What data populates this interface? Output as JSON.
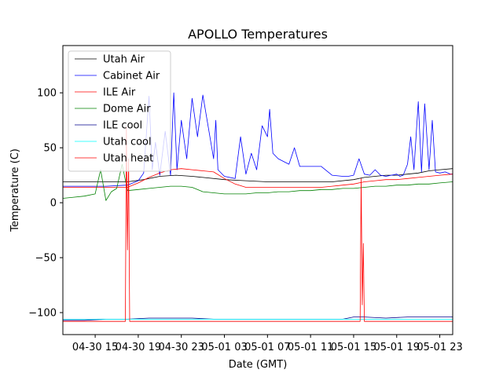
{
  "chart_data": {
    "type": "line",
    "title": "APOLLO Temperatures",
    "xlabel": "Date (GMT)",
    "ylabel": "Temperature (C)",
    "xlim": [
      12.0,
      48.2
    ],
    "ylim": [
      -120,
      143
    ],
    "x_unit": "hours since 04-30 00:00 GMT",
    "x_ticks": [
      {
        "value": 15,
        "label": "04-30 15"
      },
      {
        "value": 19,
        "label": "04-30 19"
      },
      {
        "value": 23,
        "label": "04-30 23"
      },
      {
        "value": 27,
        "label": "05-01 03"
      },
      {
        "value": 31,
        "label": "05-01 07"
      },
      {
        "value": 35,
        "label": "05-01 11"
      },
      {
        "value": 39,
        "label": "05-01 15"
      },
      {
        "value": 43,
        "label": "05-01 19"
      },
      {
        "value": 47,
        "label": "05-01 23"
      }
    ],
    "y_ticks": [
      {
        "value": -100,
        "label": "−100"
      },
      {
        "value": -50,
        "label": "−50"
      },
      {
        "value": 0,
        "label": "0"
      },
      {
        "value": 50,
        "label": "50"
      },
      {
        "value": 100,
        "label": "100"
      }
    ],
    "legend_position": "top-left",
    "series": [
      {
        "name": "Utah Air",
        "color": "#000000",
        "x": [
          12,
          14,
          16,
          18,
          19.5,
          21,
          22.5,
          24,
          25,
          27,
          29,
          31,
          33,
          35,
          37,
          39,
          40,
          41,
          42,
          43,
          44,
          45,
          46,
          47,
          48.2
        ],
        "y": [
          19,
          19,
          19,
          19,
          21,
          24,
          25,
          24,
          23,
          21,
          20,
          19,
          19,
          19,
          19,
          21,
          23,
          24,
          25,
          25,
          26,
          27,
          29,
          30,
          31
        ]
      },
      {
        "name": "Cabinet Air",
        "color": "#0000ff",
        "x": [
          12,
          14,
          16,
          18,
          19,
          19.5,
          20,
          20.3,
          20.6,
          21,
          21.5,
          22,
          22.3,
          22.6,
          23,
          23.5,
          24,
          24.5,
          25,
          26,
          26.2,
          26.4,
          27,
          28,
          28.5,
          29,
          29.5,
          30,
          30.5,
          31,
          31.2,
          31.5,
          32,
          33,
          33.5,
          34,
          35,
          36,
          37,
          38,
          38.5,
          39,
          39.5,
          40,
          40.5,
          41,
          41.5,
          42,
          42.5,
          43,
          43.3,
          43.6,
          44,
          44.3,
          44.6,
          45,
          45.3,
          45.6,
          46,
          46.3,
          46.6,
          47,
          47.5,
          48,
          48.2
        ],
        "y": [
          15,
          15,
          15,
          16,
          20,
          27,
          97,
          30,
          55,
          25,
          65,
          25,
          100,
          30,
          75,
          40,
          95,
          60,
          98,
          40,
          75,
          30,
          24,
          22,
          60,
          26,
          45,
          30,
          70,
          60,
          85,
          45,
          40,
          35,
          50,
          33,
          33,
          33,
          25,
          24,
          24,
          25,
          40,
          26,
          25,
          30,
          25,
          24,
          25,
          26,
          24,
          25,
          35,
          60,
          30,
          92,
          28,
          90,
          30,
          75,
          28,
          27,
          28,
          26,
          26
        ]
      },
      {
        "name": "ILE Air",
        "color": "#ff0000",
        "x": [
          12,
          14,
          16,
          17.5,
          18,
          19,
          20,
          21,
          22,
          23,
          24,
          25,
          26,
          27,
          28,
          29,
          30,
          31,
          32,
          33,
          34,
          35,
          36,
          37,
          38,
          39,
          40,
          41,
          42,
          43,
          44,
          45,
          46,
          47,
          48.2
        ],
        "y": [
          14,
          14,
          14,
          14,
          14,
          18,
          23,
          27,
          30,
          31,
          30,
          29,
          28,
          22,
          17,
          14,
          14,
          14,
          14,
          14,
          14,
          14,
          14,
          15,
          16,
          17,
          19,
          20,
          21,
          21,
          22,
          23,
          24,
          25,
          26
        ]
      },
      {
        "name": "Dome Air",
        "color": "#008000",
        "x": [
          12,
          13,
          14,
          15,
          15.5,
          16,
          16.5,
          17,
          17.5,
          18,
          19,
          20,
          21,
          22,
          23,
          24,
          25,
          26,
          27,
          28,
          29,
          30,
          31,
          32,
          33,
          34,
          35,
          36,
          37,
          38,
          39,
          40,
          41,
          42,
          43,
          44,
          45,
          46,
          47,
          48.2
        ],
        "y": [
          4,
          5,
          6,
          8,
          30,
          2,
          10,
          13,
          35,
          11,
          12,
          13,
          14,
          15,
          15,
          14,
          10,
          9,
          8,
          8,
          8,
          9,
          9,
          10,
          10,
          11,
          11,
          12,
          12,
          13,
          13,
          14,
          15,
          15,
          16,
          16,
          17,
          17,
          18,
          19
        ]
      },
      {
        "name": "ILE cool",
        "color": "#00008b",
        "x": [
          12,
          14,
          16,
          18,
          20,
          22,
          24,
          26,
          28,
          30,
          32,
          34,
          36,
          38,
          39,
          40,
          42,
          44,
          46,
          48.2
        ],
        "y": [
          -107,
          -107,
          -106,
          -106,
          -105,
          -105,
          -105,
          -106,
          -106,
          -106,
          -106,
          -106,
          -106,
          -106,
          -104,
          -104,
          -105,
          -104,
          -104,
          -104
        ]
      },
      {
        "name": "Utah cool",
        "color": "#00ffff",
        "x": [
          12,
          16,
          20,
          24,
          28,
          32,
          36,
          40,
          44,
          48.2
        ],
        "y": [
          -106,
          -106,
          -106,
          -106,
          -106,
          -106,
          -106,
          -106,
          -106,
          -106
        ]
      },
      {
        "name": "Utah heat",
        "color": "#ff0000",
        "x": [
          12,
          17.8,
          17.9,
          18.0,
          18.1,
          18.2,
          24,
          30,
          36,
          39.6,
          39.7,
          39.8,
          39.9,
          40,
          44,
          48.2
        ],
        "y": [
          -108,
          -108,
          70,
          -43,
          40,
          -108,
          -108,
          -108,
          -108,
          -108,
          22,
          -93,
          -37,
          -108,
          -108,
          -108
        ]
      }
    ]
  }
}
